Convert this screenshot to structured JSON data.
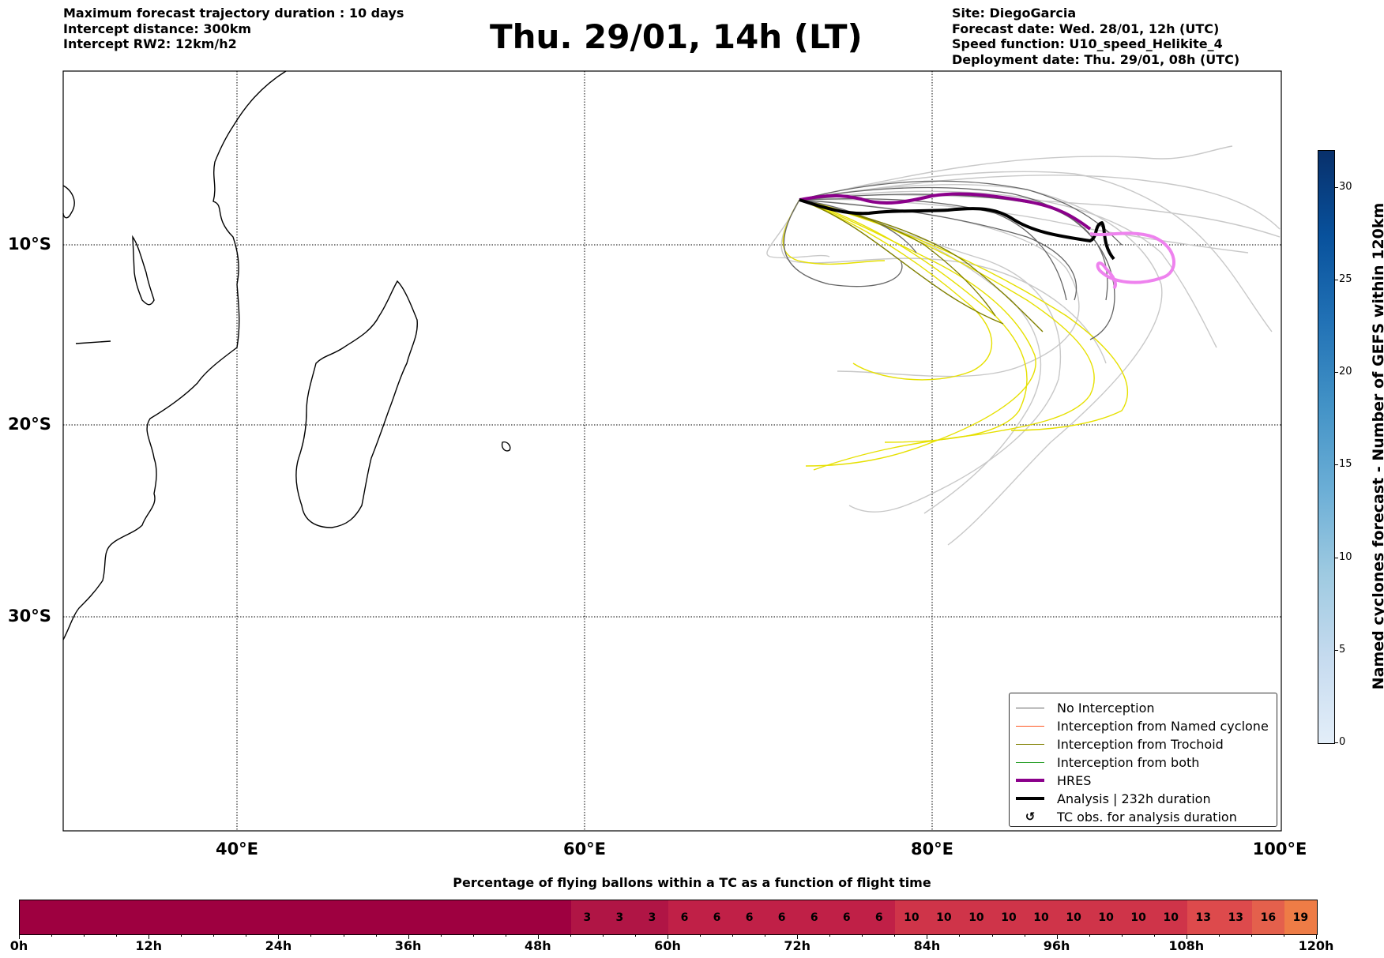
{
  "header_left": [
    "Maximum forecast trajectory duration : 10 days",
    "Intercept distance: 300km",
    "Intercept RW2: 12km/h2"
  ],
  "title": "Thu. 29/01, 14h (LT)",
  "header_right": [
    "Site: DiegoGarcia",
    "Forecast date: Wed. 28/01, 12h (UTC)",
    "Speed function: U10_speed_Helikite_4",
    "Deployment date: Thu. 29/01, 08h (UTC)"
  ],
  "map": {
    "lat_labels": [
      "10°S",
      "20°S",
      "30°S"
    ],
    "lon_labels": [
      "40°E",
      "60°E",
      "80°E",
      "100°E"
    ],
    "extent": {
      "lon_min": 30,
      "lon_max": 100,
      "lat_max": 0.5,
      "lat_min": -42
    },
    "gridlines": true,
    "colors": {
      "no_interception": "#666666",
      "named_cyclone": "#ff5722",
      "trochoid": "#808000",
      "both": "#2ca02c",
      "hres": "#8b008b",
      "analysis": "#000000",
      "outside_members": "#c8c8c8",
      "yellow_members": "#e6e000",
      "pink_track": "#ee82ee"
    }
  },
  "legend": {
    "items": [
      {
        "label": "No Interception",
        "style": "thin",
        "color": "#666666"
      },
      {
        "label": "Interception from Named cyclone",
        "style": "thin",
        "color": "#ff5722"
      },
      {
        "label": "Interception from Trochoid",
        "style": "thin",
        "color": "#808000"
      },
      {
        "label": "Interception from both",
        "style": "thin",
        "color": "#2ca02c"
      },
      {
        "label": "HRES",
        "style": "thick",
        "color": "#8b008b"
      },
      {
        "label": "Analysis | 232h duration",
        "style": "thick",
        "color": "#000000"
      },
      {
        "label": "TC obs. for analysis duration",
        "style": "symbol",
        "symbol": "↺"
      }
    ]
  },
  "colorbar": {
    "title": "Named cyclones forecast - Number of GEFS within 120km",
    "ticks": [
      "0",
      "5",
      "10",
      "15",
      "20",
      "25",
      "30"
    ],
    "min": 0,
    "max": 32
  },
  "bottom_bar": {
    "title": "Percentage of flying ballons within a TC as a function of flight time",
    "tick_labels": [
      "0h",
      "12h",
      "24h",
      "36h",
      "48h",
      "60h",
      "72h",
      "84h",
      "96h",
      "108h",
      "120h"
    ],
    "segments": [
      {
        "value": "",
        "span": 17,
        "color": "#9e0040"
      },
      {
        "value": "3",
        "color": "#b01545"
      },
      {
        "value": "3",
        "color": "#b01545"
      },
      {
        "value": "3",
        "color": "#b01545"
      },
      {
        "value": "6",
        "color": "#c02047"
      },
      {
        "value": "6",
        "color": "#c02047"
      },
      {
        "value": "6",
        "color": "#c02047"
      },
      {
        "value": "6",
        "color": "#c02047"
      },
      {
        "value": "6",
        "color": "#c02047"
      },
      {
        "value": "6",
        "color": "#c02047"
      },
      {
        "value": "6",
        "color": "#c02047"
      },
      {
        "value": "10",
        "color": "#cf3449"
      },
      {
        "value": "10",
        "color": "#cf3449"
      },
      {
        "value": "10",
        "color": "#cf3449"
      },
      {
        "value": "10",
        "color": "#cf3449"
      },
      {
        "value": "10",
        "color": "#cf3449"
      },
      {
        "value": "10",
        "color": "#cf3449"
      },
      {
        "value": "10",
        "color": "#cf3449"
      },
      {
        "value": "10",
        "color": "#cf3449"
      },
      {
        "value": "10",
        "color": "#cf3449"
      },
      {
        "value": "13",
        "color": "#dd4a4c"
      },
      {
        "value": "13",
        "color": "#dd4a4c"
      },
      {
        "value": "16",
        "color": "#e4604c"
      },
      {
        "value": "19",
        "color": "#ee7c46"
      }
    ]
  }
}
